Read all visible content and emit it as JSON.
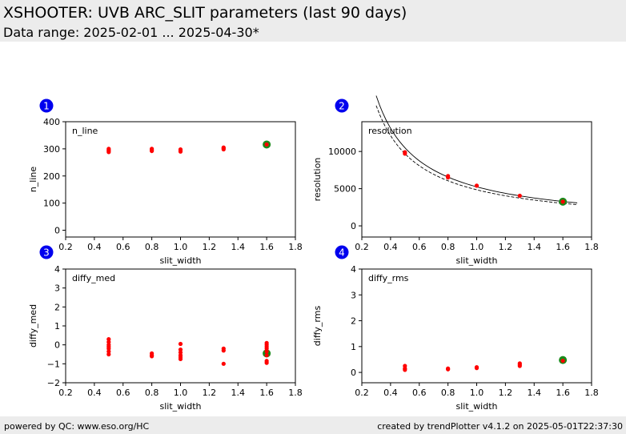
{
  "header": {
    "title": "XSHOOTER: UVB ARC_SLIT parameters (last 90 days)",
    "subtitle": "Data range: 2025-02-01 ... 2025-04-30*"
  },
  "footer": {
    "left": "powered by QC: www.eso.org/HC",
    "right": "created by trendPlotter v4.1.2 on 2025-05-01T22:37:30"
  },
  "colors": {
    "data": "#ff0000",
    "highlight": "#1a8a1a",
    "badge": "#0000ee"
  },
  "chart_data": [
    {
      "type": "scatter",
      "panel": "1",
      "label": "n_line",
      "xlabel": "slit_width",
      "ylabel": "n_line",
      "xlim": [
        0.2,
        1.8
      ],
      "ylim": [
        -25,
        400
      ],
      "xticks": [
        "0.2",
        "0.4",
        "0.6",
        "0.8",
        "1.0",
        "1.2",
        "1.4",
        "1.6",
        "1.8"
      ],
      "yticks": [
        "0",
        "100",
        "200",
        "300",
        "400"
      ],
      "points": [
        [
          0.5,
          288
        ],
        [
          0.5,
          292
        ],
        [
          0.5,
          296
        ],
        [
          0.5,
          300
        ],
        [
          0.8,
          292
        ],
        [
          0.8,
          296
        ],
        [
          0.8,
          300
        ],
        [
          1.0,
          290
        ],
        [
          1.0,
          294
        ],
        [
          1.0,
          298
        ],
        [
          1.3,
          298
        ],
        [
          1.3,
          302
        ],
        [
          1.3,
          305
        ],
        [
          1.6,
          316
        ]
      ],
      "highlight": [
        1.6,
        316
      ]
    },
    {
      "type": "scatter",
      "panel": "2",
      "label": "resolution",
      "xlabel": "slit_width",
      "ylabel": "resolution",
      "xlim": [
        0.2,
        1.8
      ],
      "ylim": [
        -1500,
        14000
      ],
      "xticks": [
        "0.2",
        "0.4",
        "0.6",
        "0.8",
        "1.0",
        "1.2",
        "1.4",
        "1.6",
        "1.8"
      ],
      "yticks": [
        "0",
        "5000",
        "10000"
      ],
      "points": [
        [
          0.5,
          9700
        ],
        [
          0.5,
          9900
        ],
        [
          0.8,
          6500
        ],
        [
          0.8,
          6700
        ],
        [
          1.0,
          5400
        ],
        [
          1.3,
          4050
        ],
        [
          1.6,
          3250
        ]
      ],
      "highlight": [
        1.6,
        3250
      ],
      "curves": {
        "solid": {
          "coef": 5250,
          "x_range": [
            0.3,
            1.7
          ]
        },
        "dashed": {
          "coef": 4850,
          "x_range": [
            0.3,
            1.7
          ]
        }
      }
    },
    {
      "type": "scatter",
      "panel": "3",
      "label": "diffy_med",
      "xlabel": "slit_width",
      "ylabel": "diffy_med",
      "xlim": [
        0.2,
        1.8
      ],
      "ylim": [
        -2,
        4
      ],
      "xticks": [
        "0.2",
        "0.4",
        "0.6",
        "0.8",
        "1.0",
        "1.2",
        "1.4",
        "1.6",
        "1.8"
      ],
      "yticks": [
        "−2",
        "−1",
        "0",
        "1",
        "2",
        "3",
        "4"
      ],
      "points": [
        [
          0.5,
          0.3
        ],
        [
          0.5,
          0.15
        ],
        [
          0.5,
          0.0
        ],
        [
          0.5,
          -0.1
        ],
        [
          0.5,
          -0.2
        ],
        [
          0.5,
          -0.35
        ],
        [
          0.5,
          -0.5
        ],
        [
          0.8,
          -0.45
        ],
        [
          0.8,
          -0.55
        ],
        [
          0.8,
          -0.6
        ],
        [
          1.0,
          0.05
        ],
        [
          1.0,
          -0.25
        ],
        [
          1.0,
          -0.4
        ],
        [
          1.0,
          -0.55
        ],
        [
          1.0,
          -0.65
        ],
        [
          1.0,
          -0.75
        ],
        [
          1.3,
          -0.2
        ],
        [
          1.3,
          -0.3
        ],
        [
          1.3,
          -1.0
        ],
        [
          1.6,
          0.1
        ],
        [
          1.6,
          0.0
        ],
        [
          1.6,
          -0.1
        ],
        [
          1.6,
          -0.2
        ],
        [
          1.6,
          -0.35
        ],
        [
          1.6,
          -0.55
        ],
        [
          1.6,
          -0.85
        ],
        [
          1.6,
          -0.95
        ]
      ],
      "highlight": [
        1.6,
        -0.45
      ]
    },
    {
      "type": "scatter",
      "panel": "4",
      "label": "diffy_rms",
      "xlabel": "slit_width",
      "ylabel": "diffy_rms",
      "xlim": [
        0.2,
        1.8
      ],
      "ylim": [
        -0.4,
        4
      ],
      "xticks": [
        "0.2",
        "0.4",
        "0.6",
        "0.8",
        "1.0",
        "1.2",
        "1.4",
        "1.6",
        "1.8"
      ],
      "yticks": [
        "0",
        "1",
        "2",
        "3",
        "4"
      ],
      "points": [
        [
          0.5,
          0.25
        ],
        [
          0.5,
          0.15
        ],
        [
          0.5,
          0.1
        ],
        [
          0.8,
          0.12
        ],
        [
          0.8,
          0.15
        ],
        [
          1.0,
          0.17
        ],
        [
          1.0,
          0.2
        ],
        [
          1.3,
          0.25
        ],
        [
          1.3,
          0.3
        ],
        [
          1.3,
          0.35
        ],
        [
          1.6,
          0.45
        ]
      ],
      "highlight": [
        1.6,
        0.48
      ]
    }
  ]
}
